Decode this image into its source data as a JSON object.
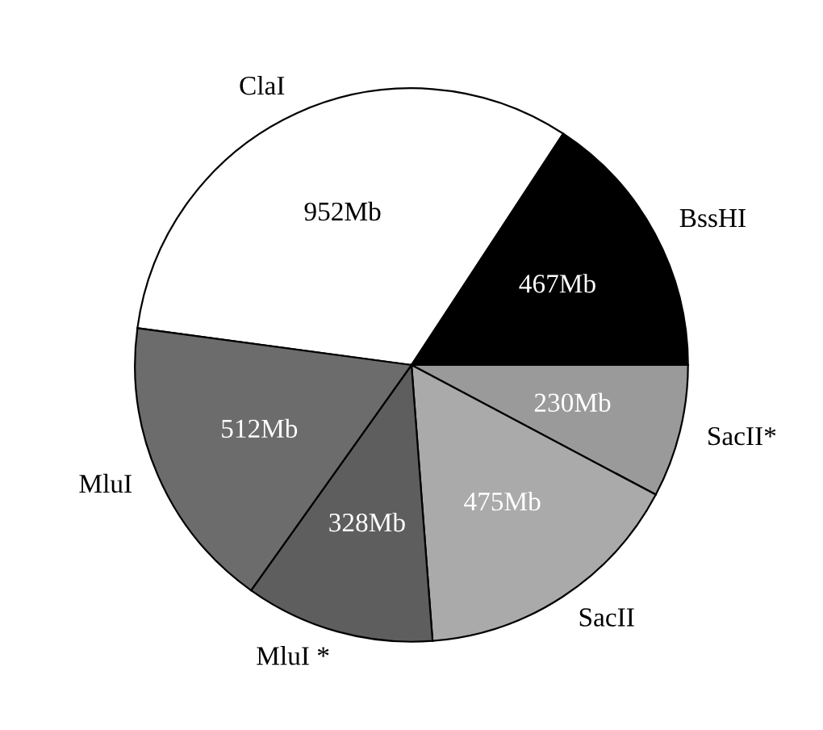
{
  "chart_data": {
    "type": "pie",
    "categories": [
      "ClaI",
      "BssHI",
      "SacII*",
      "SacII",
      "MluI *",
      "MluI"
    ],
    "values": [
      952,
      467,
      230,
      475,
      328,
      512
    ],
    "value_labels": [
      "952Mb",
      "467Mb",
      "230Mb",
      "475Mb",
      "328Mb",
      "512Mb"
    ],
    "colors": [
      "#ffffff",
      "#000000",
      "#9a9a9a",
      "#aaaaaa",
      "#5e5e5e",
      "#6c6c6c"
    ],
    "legend": false
  }
}
